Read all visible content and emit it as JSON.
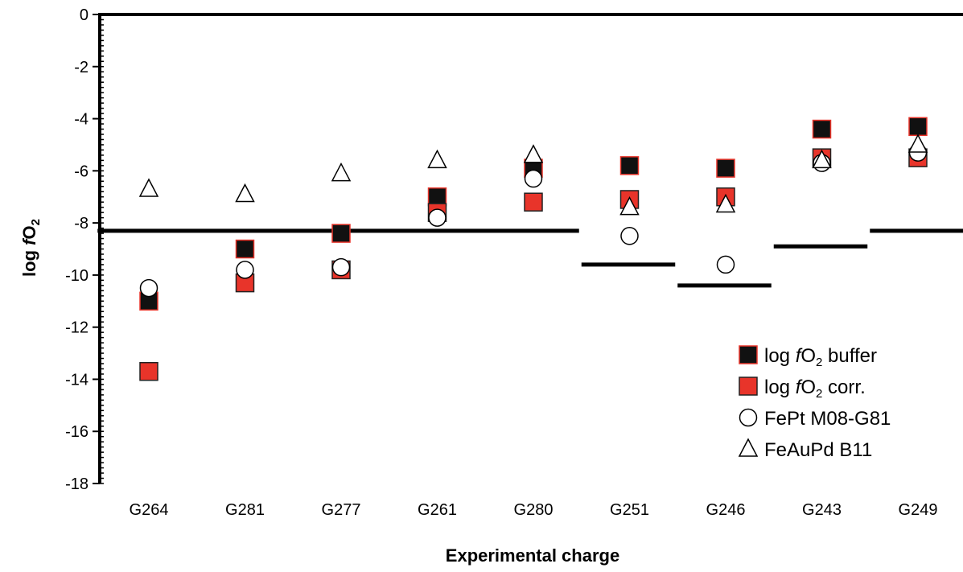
{
  "chart_data": {
    "type": "scatter",
    "categories": [
      "G264",
      "G281",
      "G277",
      "G261",
      "G280",
      "G251",
      "G246",
      "G243",
      "G249"
    ],
    "xlabel": "Experimental charge",
    "ylabel": {
      "prefix": "log ",
      "italic": "f",
      "main": "O",
      "sub": "2"
    },
    "ylim": [
      -18,
      0
    ],
    "yticks": [
      "0",
      "-2",
      "-4",
      "-6",
      "-8",
      "-10",
      "-12",
      "-14",
      "-16",
      "-18"
    ],
    "ytick_values": [
      0,
      -2,
      -4,
      -6,
      -8,
      -10,
      -12,
      -14,
      -16,
      -18
    ],
    "grid": false,
    "legend_position": "bottom-right",
    "series": [
      {
        "name": "log fO2 buffer",
        "legend": {
          "prefix": "log ",
          "italic": "f",
          "main": "O",
          "sub": "2",
          "suffix": " buffer"
        },
        "marker": "square",
        "fill": "#111111",
        "stroke": "#e8342a",
        "values": [
          -11.0,
          -9.0,
          -8.4,
          -7.0,
          -5.9,
          -5.8,
          -5.9,
          -4.4,
          -4.3
        ]
      },
      {
        "name": "log fO2 corr.",
        "legend": {
          "prefix": "log ",
          "italic": "f",
          "main": "O",
          "sub": "2",
          "suffix": " corr."
        },
        "marker": "square",
        "fill": "#e8342a",
        "stroke": "#222222",
        "values": [
          -13.7,
          -10.3,
          -9.8,
          -7.6,
          -7.2,
          -7.1,
          -7.0,
          -5.5,
          -5.5
        ]
      },
      {
        "name": "FePt M08-G81",
        "legend": {
          "prefix": "FePt M08-G81",
          "italic": "",
          "main": "",
          "sub": "",
          "suffix": ""
        },
        "marker": "circle",
        "fill": "#ffffff",
        "stroke": "#000000",
        "values": [
          -10.5,
          -9.8,
          -9.7,
          -7.8,
          -6.3,
          -8.5,
          -9.6,
          -5.7,
          -5.3
        ]
      },
      {
        "name": "FeAuPd B11",
        "legend": {
          "prefix": "FeAuPd B11",
          "italic": "",
          "main": "",
          "sub": "",
          "suffix": ""
        },
        "marker": "triangle",
        "fill": "#ffffff",
        "stroke": "#000000",
        "values": [
          -6.7,
          -6.9,
          -6.1,
          -5.6,
          -5.4,
          -7.4,
          -7.3,
          -5.6,
          -5.0
        ]
      }
    ],
    "reference_lines": [
      {
        "from": "G264",
        "to": "G280",
        "y": -8.3
      },
      {
        "from": "G251",
        "to": "G251",
        "y": -9.6
      },
      {
        "from": "G246",
        "to": "G246",
        "y": -10.4
      },
      {
        "from": "G243",
        "to": "G243",
        "y": -8.9
      },
      {
        "from": "G249",
        "to": "G249",
        "y": -8.3
      }
    ]
  }
}
